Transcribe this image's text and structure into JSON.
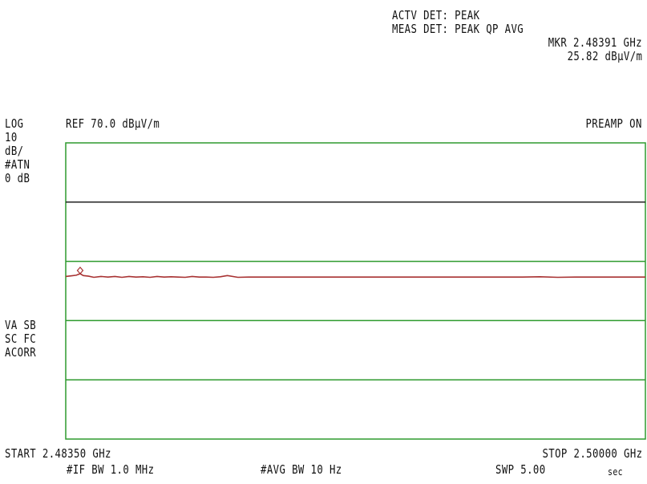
{
  "header": {
    "active_detector": "ACTV DET: PEAK",
    "meas_detector": "MEAS DET: PEAK QP AVG",
    "marker_freq": "MKR 2.48391 GHz",
    "marker_level": "25.82 dBµV/m"
  },
  "top_bar": {
    "scale_type": "LOG",
    "reference_level": "REF 70.0 dBµV/m",
    "preamp": "PREAMP ON"
  },
  "left_annotations": {
    "scale_value": "10",
    "scale_unit": "dB/",
    "attenuation_label": "#ATN",
    "attenuation_value": "0 dB",
    "flags_line1": "VA SB",
    "flags_line2": "SC FC",
    "flags_line3": "ACORR"
  },
  "footer": {
    "start": "START 2.48350 GHz",
    "stop": "STOP 2.50000 GHz",
    "if_bw": "#IF BW 1.0 MHz",
    "avg_bw": "#AVG BW 10 Hz",
    "sweep": "SWP 5.00",
    "sweep_unit": "sec"
  },
  "colors": {
    "grid": "#2e9a2e",
    "display_line": "#222222",
    "trace": "#a83232",
    "text": "#111111"
  },
  "chart_data": {
    "type": "line",
    "x_unit": "GHz",
    "y_unit": "dBµV/m",
    "xlim": [
      2.4835,
      2.5
    ],
    "ylim": [
      -30,
      70
    ],
    "y_divisions": 10,
    "grid": true,
    "display_line_level": 50,
    "marker": {
      "x": 2.48391,
      "y": 25.82
    },
    "series": [
      {
        "x": [
          2.4835,
          2.48365,
          2.4838,
          2.48391,
          2.484,
          2.48415,
          2.4843,
          2.4845,
          2.4847,
          2.4849,
          2.4851,
          2.4853,
          2.4855,
          2.4857,
          2.4859,
          2.4861,
          2.4863,
          2.4865,
          2.4867,
          2.4869,
          2.4871,
          2.4873,
          2.4875,
          2.4877,
          2.4879,
          2.4881,
          2.4884,
          2.4887,
          2.489,
          2.4895,
          2.49,
          2.4905,
          2.491,
          2.4915,
          2.492,
          2.4925,
          2.493,
          2.4935,
          2.494,
          2.4945,
          2.495,
          2.4955,
          2.496,
          2.4965,
          2.497,
          2.4975,
          2.498,
          2.4985,
          2.499,
          2.4995,
          2.5
        ],
        "y": [
          24.9,
          25.1,
          25.3,
          25.82,
          25.2,
          25.0,
          24.6,
          24.9,
          24.7,
          24.9,
          24.6,
          24.9,
          24.7,
          24.8,
          24.6,
          24.9,
          24.7,
          24.8,
          24.7,
          24.6,
          24.9,
          24.7,
          24.7,
          24.6,
          24.8,
          25.2,
          24.6,
          24.7,
          24.7,
          24.7,
          24.7,
          24.7,
          24.7,
          24.7,
          24.7,
          24.7,
          24.7,
          24.7,
          24.7,
          24.7,
          24.7,
          24.7,
          24.7,
          24.7,
          24.8,
          24.6,
          24.7,
          24.7,
          24.7,
          24.7,
          24.7
        ]
      }
    ]
  }
}
